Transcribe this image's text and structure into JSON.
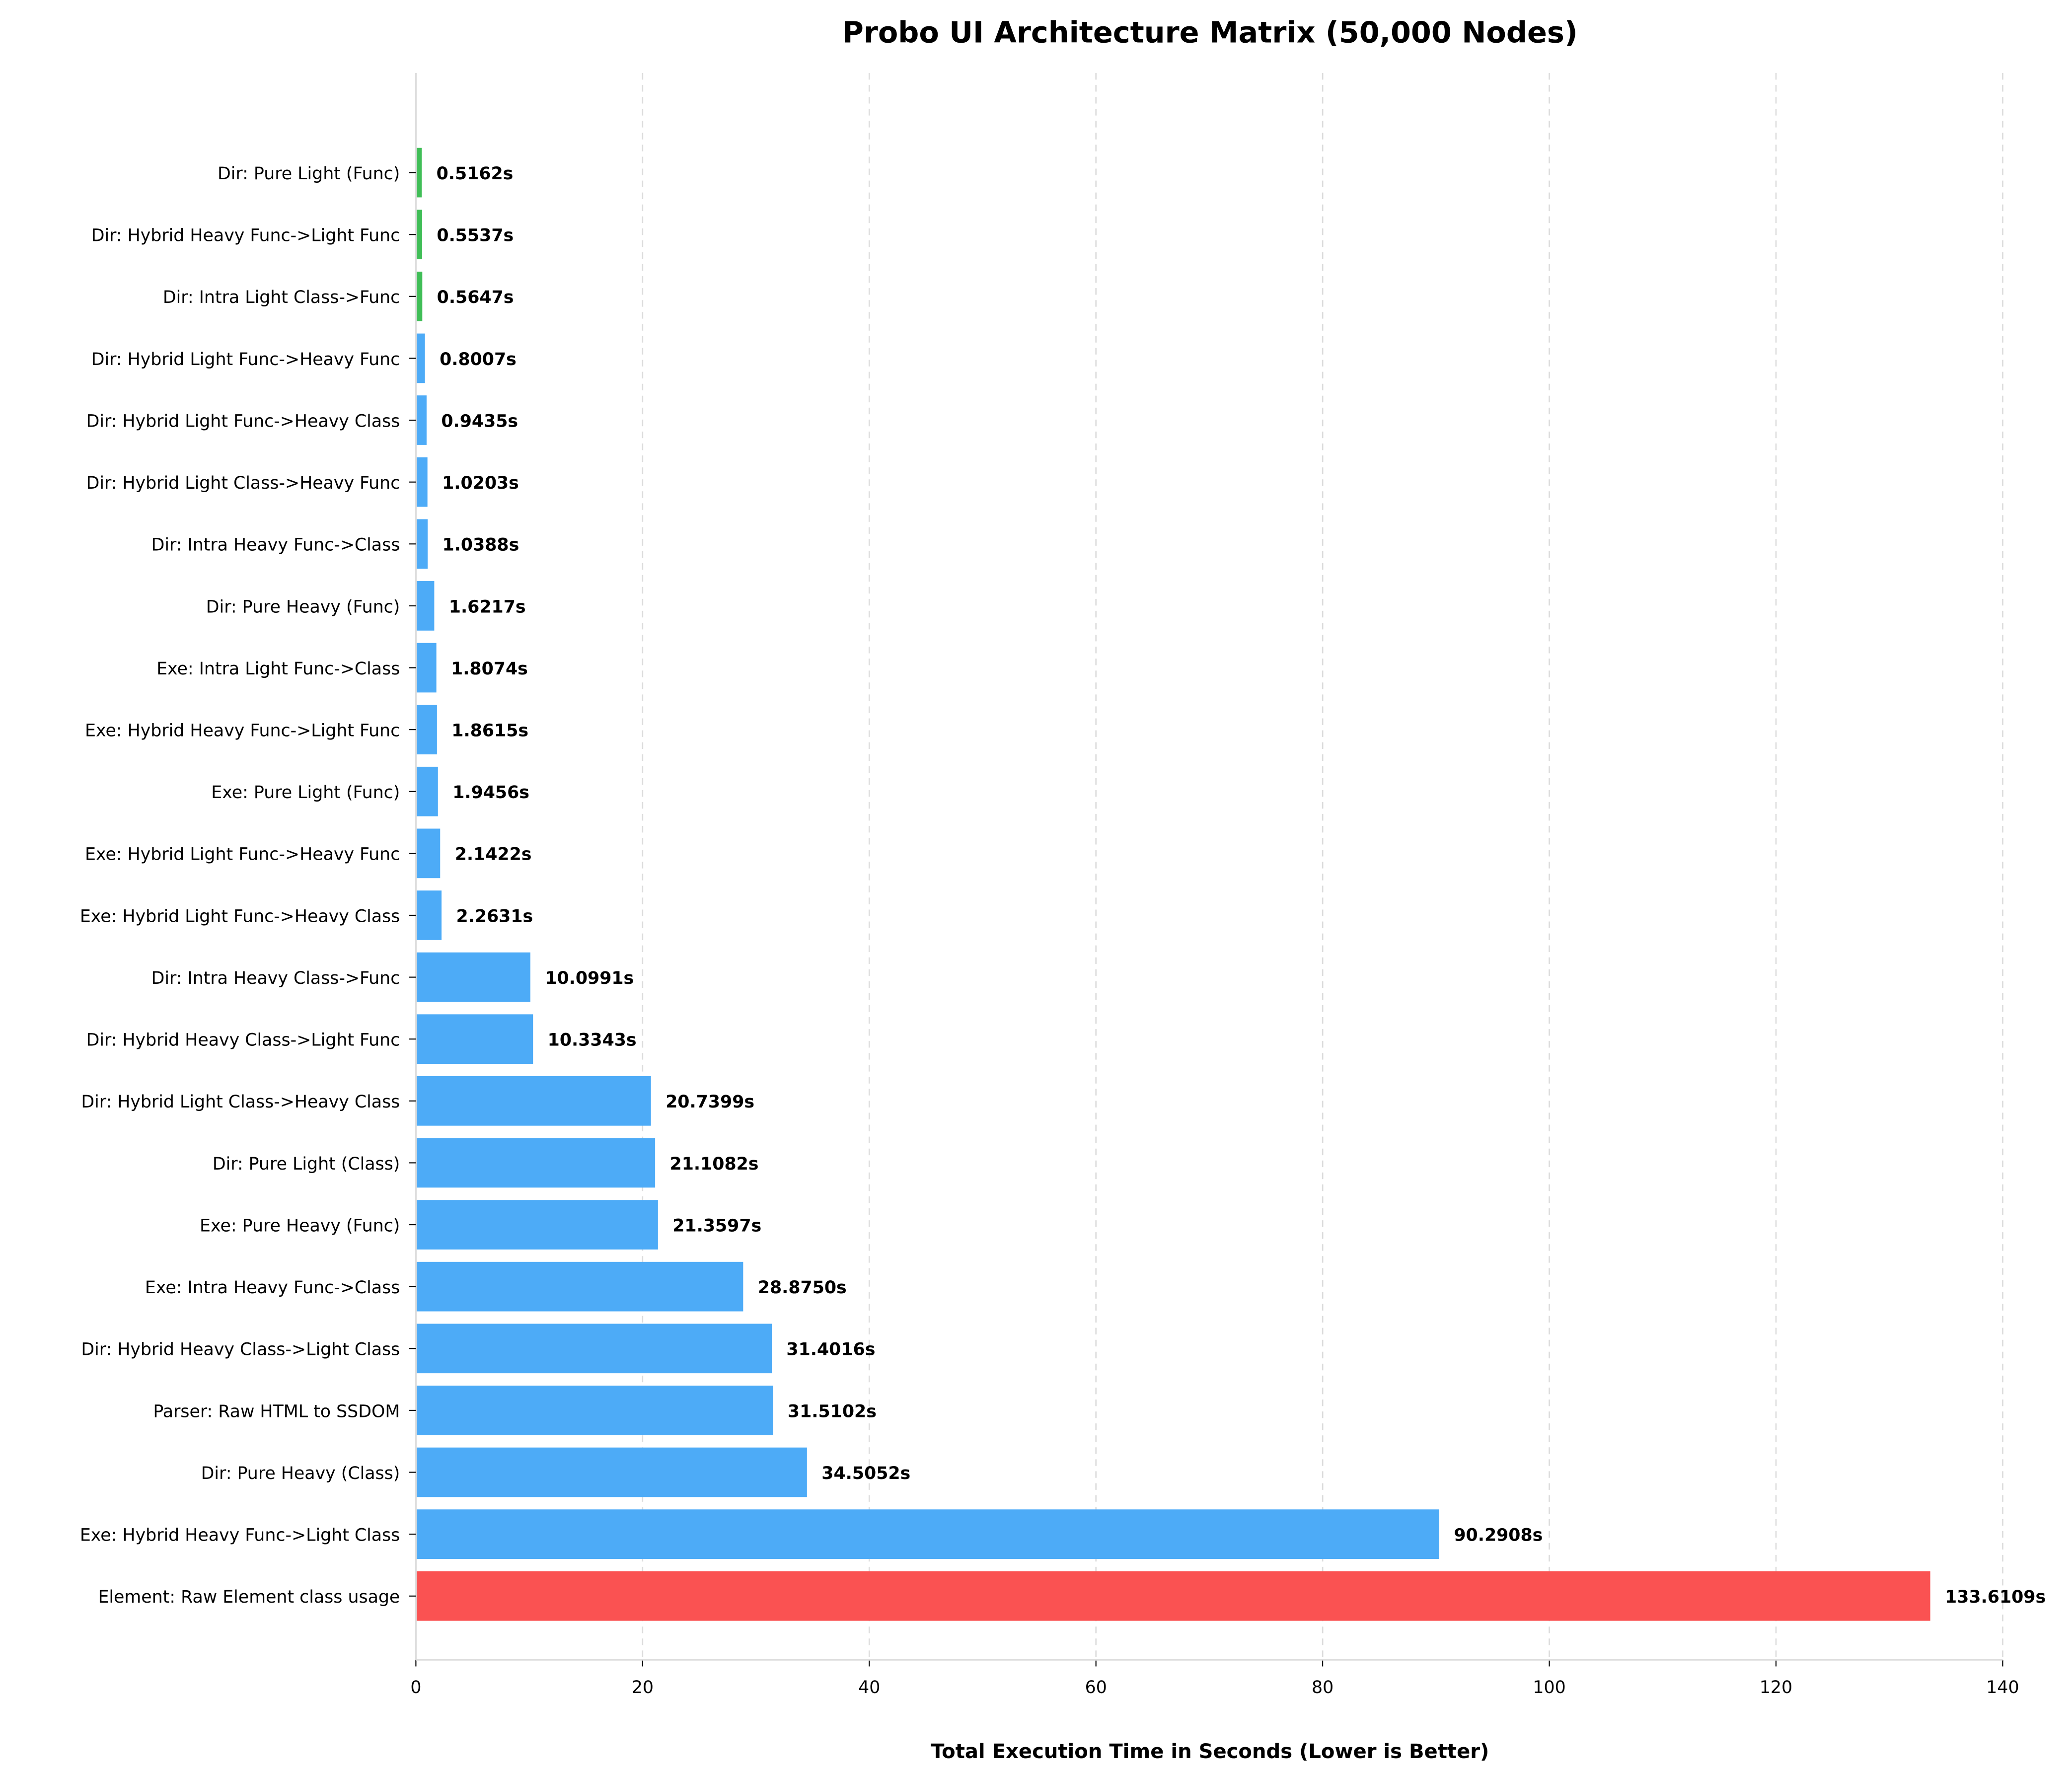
{
  "chart_data": {
    "type": "bar",
    "orientation": "horizontal",
    "title": "Probo UI Architecture Matrix (50,000 Nodes)",
    "xlabel": "Total Execution Time in Seconds (Lower is Better)",
    "ylabel": "",
    "xlim": [
      0,
      140
    ],
    "xticks": [
      "0",
      "20",
      "40",
      "60",
      "80",
      "100",
      "120",
      "140"
    ],
    "grid": "x-dashed",
    "value_suffix": "s",
    "colors": {
      "fast": "#40BE57",
      "normal": "#4DABF7",
      "slowest": "#FA5252"
    },
    "categories": [
      "Dir: Pure Light (Func)",
      "Dir: Hybrid Heavy Func->Light Func",
      "Dir: Intra Light Class->Func",
      "Dir: Hybrid Light Func->Heavy Func",
      "Dir: Hybrid Light Func->Heavy Class",
      "Dir: Hybrid Light Class->Heavy Func",
      "Dir: Intra Heavy Func->Class",
      "Dir: Pure Heavy (Func)",
      "Exe: Intra Light Func->Class",
      "Exe: Hybrid Heavy Func->Light Func",
      "Exe: Pure Light (Func)",
      "Exe: Hybrid Light Func->Heavy Func",
      "Exe: Hybrid Light Func->Heavy Class",
      "Dir: Intra Heavy Class->Func",
      "Dir: Hybrid Heavy Class->Light Func",
      "Dir: Hybrid Light Class->Heavy Class",
      "Dir: Pure Light (Class)",
      "Exe: Pure Heavy (Func)",
      "Exe: Intra Heavy Func->Class",
      "Dir: Hybrid Heavy Class->Light Class",
      "Parser: Raw HTML to SSDOM",
      "Dir: Pure Heavy (Class)",
      "Exe: Hybrid Heavy Func->Light Class",
      "Element: Raw Element class usage"
    ],
    "values": [
      0.5162,
      0.5537,
      0.5647,
      0.8007,
      0.9435,
      1.0203,
      1.0388,
      1.6217,
      1.8074,
      1.8615,
      1.9456,
      2.1422,
      2.2631,
      10.0991,
      10.3343,
      20.7399,
      21.1082,
      21.3597,
      28.875,
      31.4016,
      31.5102,
      34.5052,
      90.2908,
      133.6109
    ],
    "labels": [
      "0.5162s",
      "0.5537s",
      "0.5647s",
      "0.8007s",
      "0.9435s",
      "1.0203s",
      "1.0388s",
      "1.6217s",
      "1.8074s",
      "1.8615s",
      "1.9456s",
      "2.1422s",
      "2.2631s",
      "10.0991s",
      "10.3343s",
      "20.7399s",
      "21.1082s",
      "21.3597s",
      "28.8750s",
      "31.4016s",
      "31.5102s",
      "34.5052s",
      "90.2908s",
      "133.6109s"
    ],
    "bar_colors": [
      "fast",
      "fast",
      "fast",
      "normal",
      "normal",
      "normal",
      "normal",
      "normal",
      "normal",
      "normal",
      "normal",
      "normal",
      "normal",
      "normal",
      "normal",
      "normal",
      "normal",
      "normal",
      "normal",
      "normal",
      "normal",
      "normal",
      "normal",
      "slowest"
    ]
  }
}
